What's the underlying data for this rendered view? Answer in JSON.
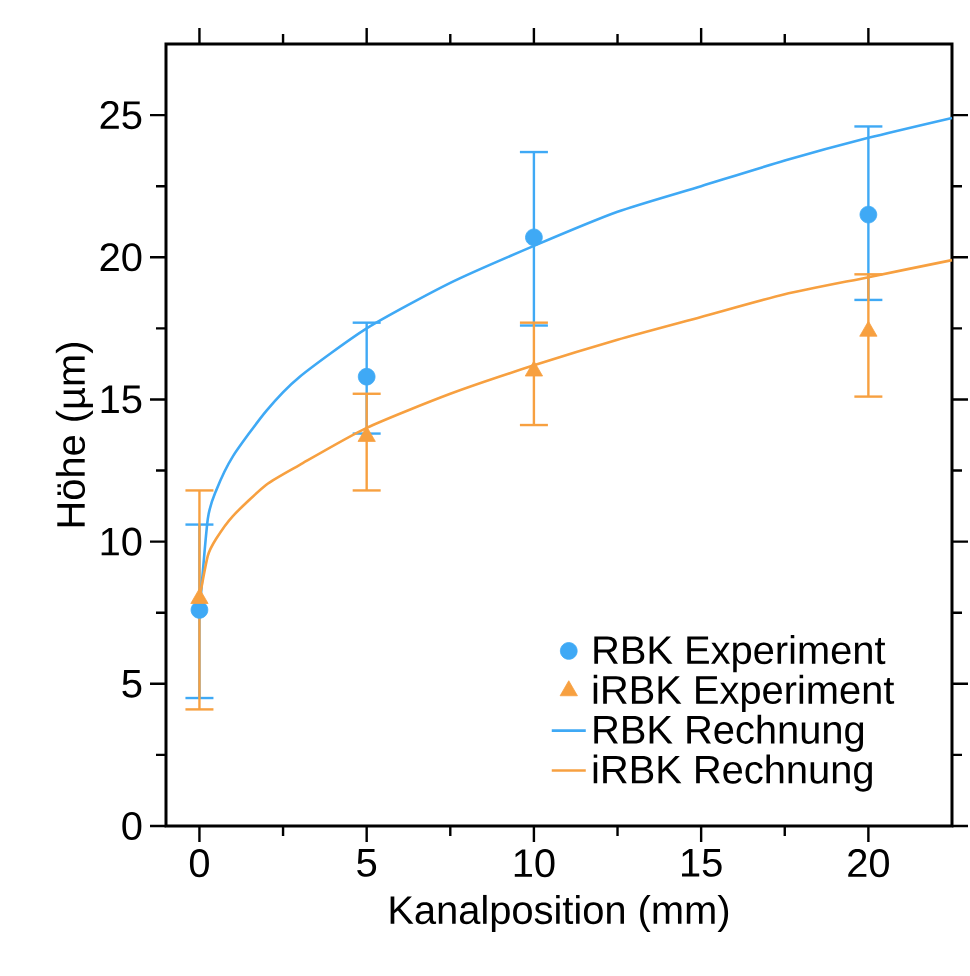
{
  "chart_data": {
    "type": "scatter",
    "xlabel": "Kanalposition (mm)",
    "ylabel": "Höhe (µm)",
    "xlim": [
      -1,
      22.5
    ],
    "ylim": [
      0,
      27.5
    ],
    "xticks": [
      0,
      5,
      10,
      15,
      20
    ],
    "yticks": [
      0,
      5,
      10,
      15,
      20,
      25
    ],
    "legend": "bottom right",
    "grid": false,
    "series": [
      {
        "name": "RBK Experiment",
        "marker": "circle",
        "color": "#3fa9f5",
        "x": [
          0,
          5,
          10,
          20
        ],
        "values": [
          7.6,
          15.8,
          20.7,
          21.5
        ],
        "errors": [
          [
            4.5,
            10.6
          ],
          [
            13.8,
            17.7
          ],
          [
            17.6,
            23.7
          ],
          [
            18.5,
            24.6
          ]
        ]
      },
      {
        "name": "iRBK Experiment",
        "marker": "triangle",
        "color": "#f7a040",
        "x": [
          0,
          5,
          10,
          20
        ],
        "values": [
          8.0,
          13.7,
          16.0,
          17.4
        ],
        "errors": [
          [
            4.1,
            11.8
          ],
          [
            11.8,
            15.2
          ],
          [
            14.1,
            17.7
          ],
          [
            15.1,
            19.4
          ]
        ]
      },
      {
        "name": "RBK Rechnung",
        "type": "line",
        "marker": "none",
        "line_style": "solid",
        "color": "#3fa9f5",
        "x": [
          0,
          0.25,
          0.5,
          1,
          2,
          3,
          5,
          7.5,
          10,
          12.5,
          15,
          17.5,
          20,
          22.5
        ],
        "values": [
          7.5,
          10.8,
          11.8,
          13.0,
          14.6,
          15.8,
          17.5,
          19.1,
          20.4,
          21.6,
          22.5,
          23.4,
          24.2,
          24.9
        ]
      },
      {
        "name": "iRBK Rechnung",
        "type": "line",
        "marker": "none",
        "line_style": "solid",
        "color": "#f7a040",
        "x": [
          0,
          0.25,
          0.5,
          1,
          2,
          3,
          5,
          7.5,
          10,
          12.5,
          15,
          17.5,
          20,
          22.5
        ],
        "values": [
          8.0,
          9.5,
          10.1,
          10.9,
          12.0,
          12.7,
          14.0,
          15.2,
          16.2,
          17.1,
          17.9,
          18.7,
          19.3,
          19.9
        ]
      }
    ]
  }
}
